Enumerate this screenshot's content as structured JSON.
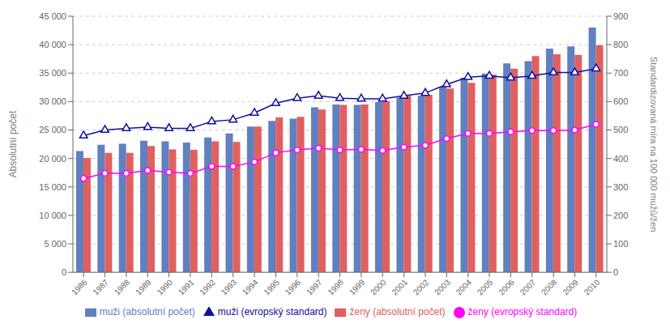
{
  "chart_data": {
    "type": "bar",
    "categories": [
      1986,
      1987,
      1988,
      1989,
      1990,
      1991,
      1992,
      1993,
      1994,
      1995,
      1996,
      1997,
      1998,
      1999,
      2000,
      2001,
      2002,
      2003,
      2004,
      2005,
      2006,
      2007,
      2008,
      2009,
      2010
    ],
    "series": [
      {
        "name": "muži (absolutní počet)",
        "type": "bar",
        "color": "#6080c0",
        "values": [
          21300,
          22400,
          22600,
          23100,
          23000,
          22800,
          23700,
          24400,
          25600,
          26600,
          27000,
          29000,
          29500,
          29400,
          29900,
          30700,
          31000,
          32600,
          34200,
          34900,
          36700,
          37100,
          39300,
          39700,
          43000
        ]
      },
      {
        "name": "ženy (absolutní počet)",
        "type": "bar",
        "color": "#e06060",
        "values": [
          20100,
          21000,
          21000,
          22200,
          21600,
          21500,
          23000,
          22900,
          25600,
          27200,
          27300,
          28600,
          29400,
          29500,
          30100,
          31000,
          31200,
          32300,
          33300,
          34700,
          35800,
          38000,
          38300,
          38200,
          39900
        ]
      },
      {
        "name": "muži (evropský standard)",
        "type": "line",
        "axis": "y2",
        "color": "#1010a0",
        "marker": "triangle",
        "values": [
          480,
          500,
          506,
          510,
          506,
          506,
          530,
          536,
          560,
          594,
          612,
          620,
          612,
          610,
          610,
          620,
          630,
          660,
          686,
          690,
          684,
          690,
          702,
          702,
          716
        ]
      },
      {
        "name": "ženy (evropský standard)",
        "type": "line",
        "axis": "y2",
        "color": "#ff00ff",
        "marker": "circle",
        "values": [
          330,
          348,
          348,
          358,
          352,
          348,
          372,
          372,
          388,
          420,
          430,
          436,
          430,
          432,
          428,
          440,
          446,
          470,
          488,
          488,
          494,
          498,
          498,
          500,
          520
        ]
      }
    ],
    "ylabel": "Absolutní počet",
    "y2label": "Standardizovaná míra na 100 000 mužů/žen",
    "ylim": [
      0,
      45000
    ],
    "yticks": [
      0,
      {
        "value": 5000,
        "label": "5 000"
      },
      {
        "value": 10000,
        "label": "10 000"
      },
      {
        "value": 15000,
        "label": "15 000"
      },
      {
        "value": 20000,
        "label": "20 000"
      },
      {
        "value": 25000,
        "label": "25 000"
      },
      {
        "value": 30000,
        "label": "30 000"
      },
      {
        "value": 35000,
        "label": "35 000"
      },
      {
        "value": 40000,
        "label": "40 000"
      },
      {
        "value": 45000,
        "label": "45 000"
      }
    ],
    "y2lim": [
      0,
      900
    ],
    "y2ticks": [
      0,
      100,
      200,
      300,
      400,
      500,
      600,
      700,
      800,
      900
    ],
    "grid": true,
    "legend": "bottom"
  }
}
